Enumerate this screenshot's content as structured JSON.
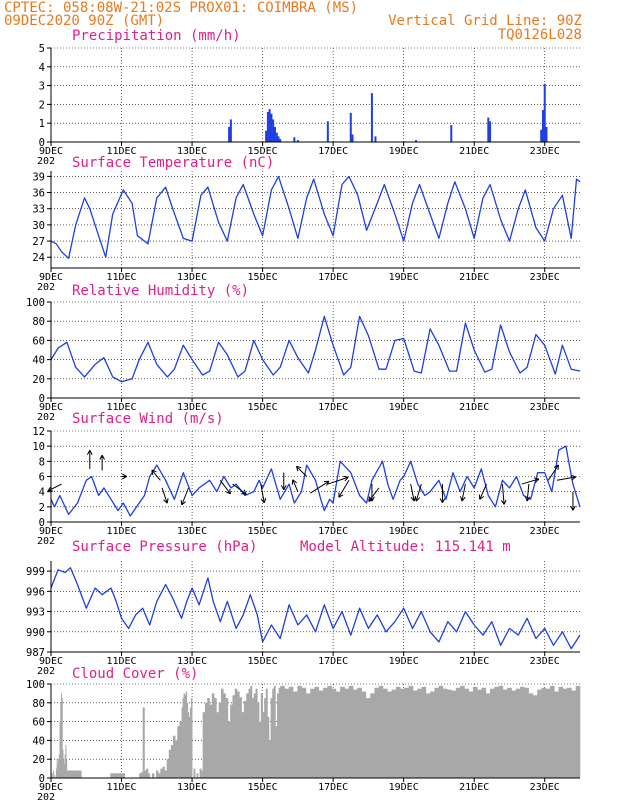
{
  "header": {
    "line1_left": "CPTEC:   058:08W-21:02S   PROX01: COIMBRA (MS)",
    "line2_left": "09DEC2020 90Z (GMT)",
    "line1_right": "Vertical Grid Line: 90Z",
    "line2_right": "TQ0126L028"
  },
  "x_axis": {
    "day_start": 9,
    "day_end": 24,
    "tick_labels": [
      "9DEC",
      "11DEC",
      "13DEC",
      "15DEC",
      "17DEC",
      "19DEC",
      "21DEC",
      "23DEC"
    ],
    "tick_days": [
      9,
      11,
      13,
      15,
      17,
      19,
      21,
      23
    ],
    "partial_year_label": "202"
  },
  "colors": {
    "series": "#1f3fe0",
    "title": "#e0208a",
    "header": "#e87a1e",
    "cloud": "#a8a8a8",
    "arrow": "#000000",
    "grid": "#000000"
  },
  "chart_data": [
    {
      "id": "precip",
      "type": "bar",
      "title": "Precipitation (mm/h)",
      "ylim": [
        0,
        5
      ],
      "yticks": [
        0,
        1,
        2,
        3,
        4,
        5
      ],
      "x": [
        14.05,
        14.1,
        15.1,
        15.15,
        15.2,
        15.25,
        15.3,
        15.35,
        15.4,
        15.45,
        15.5,
        15.9,
        16.0,
        16.85,
        17.5,
        17.55,
        18.1,
        18.2,
        19.35,
        20.35,
        21.4,
        21.45,
        22.9,
        22.95,
        23.0,
        23.05
      ],
      "values": [
        0.8,
        1.2,
        0.6,
        1.6,
        1.75,
        1.5,
        1.2,
        0.8,
        0.5,
        0.3,
        0.15,
        0.25,
        0.1,
        1.1,
        1.55,
        0.4,
        2.6,
        0.3,
        0.1,
        0.9,
        1.3,
        1.1,
        0.65,
        1.7,
        3.1,
        0.8
      ],
      "xlabel": "",
      "ylabel": ""
    },
    {
      "id": "temp",
      "type": "line",
      "title": "Surface Temperature (nC)",
      "ylim": [
        22,
        40
      ],
      "yticks": [
        24,
        27,
        30,
        33,
        36,
        39
      ],
      "x": [
        9.0,
        9.15,
        9.3,
        9.5,
        9.7,
        9.95,
        10.1,
        10.35,
        10.55,
        10.75,
        11.05,
        11.3,
        11.45,
        11.75,
        12.0,
        12.25,
        12.45,
        12.75,
        13.0,
        13.25,
        13.45,
        13.75,
        14.0,
        14.25,
        14.45,
        14.75,
        15.0,
        15.25,
        15.45,
        15.75,
        16.0,
        16.25,
        16.45,
        16.75,
        17.0,
        17.25,
        17.45,
        17.7,
        17.95,
        18.25,
        18.45,
        18.75,
        19.0,
        19.25,
        19.45,
        19.75,
        20.0,
        20.25,
        20.45,
        20.75,
        21.0,
        21.25,
        21.45,
        21.75,
        22.0,
        22.25,
        22.45,
        22.75,
        23.0,
        23.25,
        23.5,
        23.75,
        23.9,
        24.0
      ],
      "values": [
        27,
        26.5,
        25,
        23.8,
        30,
        35,
        33,
        28,
        24,
        32,
        36.5,
        34,
        28,
        26.5,
        35,
        37,
        33,
        27.5,
        27,
        35.5,
        37,
        30.5,
        27,
        35,
        37.5,
        32,
        28,
        36.5,
        39,
        33,
        27.5,
        35,
        38.5,
        32,
        28,
        37.5,
        39,
        35.5,
        29,
        34,
        37.5,
        32,
        27,
        34,
        37.5,
        32,
        27.5,
        34,
        38,
        33,
        27.5,
        35,
        37.5,
        31,
        27,
        33,
        36.5,
        29.5,
        27,
        33,
        35.5,
        27.5,
        38.5,
        38
      ],
      "xlabel": "",
      "ylabel": ""
    },
    {
      "id": "rh",
      "type": "line",
      "title": "Relative Humidity (%)",
      "ylim": [
        0,
        100
      ],
      "yticks": [
        0,
        20,
        40,
        60,
        80,
        100
      ],
      "x": [
        9.0,
        9.2,
        9.45,
        9.7,
        9.95,
        10.25,
        10.5,
        10.75,
        11.0,
        11.3,
        11.5,
        11.75,
        12.0,
        12.3,
        12.5,
        12.75,
        13.0,
        13.3,
        13.5,
        13.75,
        14.0,
        14.3,
        14.5,
        14.75,
        15.0,
        15.3,
        15.5,
        15.75,
        16.0,
        16.3,
        16.5,
        16.75,
        17.0,
        17.3,
        17.5,
        17.75,
        18.0,
        18.3,
        18.5,
        18.75,
        19.0,
        19.3,
        19.5,
        19.75,
        20.0,
        20.3,
        20.5,
        20.75,
        21.0,
        21.3,
        21.5,
        21.75,
        22.0,
        22.3,
        22.5,
        22.75,
        23.0,
        23.3,
        23.5,
        23.75,
        24.0
      ],
      "values": [
        40,
        52,
        58,
        32,
        22,
        35,
        42,
        22,
        17,
        20,
        40,
        58,
        35,
        22,
        30,
        55,
        40,
        24,
        28,
        58,
        45,
        22,
        28,
        60,
        40,
        24,
        32,
        60,
        42,
        26,
        50,
        85,
        55,
        24,
        32,
        85,
        65,
        30,
        30,
        60,
        62,
        28,
        26,
        72,
        55,
        28,
        28,
        78,
        50,
        27,
        30,
        76,
        48,
        26,
        32,
        66,
        55,
        25,
        55,
        30,
        28
      ],
      "xlabel": "",
      "ylabel": ""
    },
    {
      "id": "wind",
      "type": "line",
      "title": "Surface Wind (m/s)",
      "ylim": [
        0,
        12
      ],
      "yticks": [
        0,
        2,
        4,
        6,
        8,
        10,
        12
      ],
      "x": [
        9.0,
        9.1,
        9.25,
        9.35,
        9.5,
        9.75,
        10.0,
        10.15,
        10.35,
        10.5,
        10.7,
        10.9,
        11.05,
        11.25,
        11.5,
        11.65,
        11.8,
        12.0,
        12.25,
        12.5,
        12.75,
        13.0,
        13.2,
        13.5,
        13.7,
        13.9,
        14.1,
        14.25,
        14.5,
        14.75,
        14.9,
        15.0,
        15.25,
        15.5,
        15.75,
        15.9,
        16.1,
        16.25,
        16.5,
        16.65,
        16.75,
        16.9,
        17.0,
        17.2,
        17.5,
        17.75,
        17.95,
        18.1,
        18.4,
        18.55,
        18.7,
        18.9,
        19.0,
        19.2,
        19.4,
        19.6,
        19.75,
        20.0,
        20.2,
        20.4,
        20.6,
        20.8,
        21.0,
        21.2,
        21.4,
        21.6,
        21.8,
        22.0,
        22.2,
        22.4,
        22.6,
        22.8,
        23.0,
        23.2,
        23.4,
        23.6,
        23.8,
        24.0
      ],
      "values": [
        3.0,
        2.0,
        3.5,
        2.5,
        1.0,
        2.5,
        5.5,
        6.0,
        3.5,
        4.5,
        3.0,
        1.5,
        2.5,
        0.8,
        2.5,
        3.5,
        6.0,
        7.5,
        5.5,
        3.0,
        6.5,
        3.5,
        4.5,
        5.5,
        4.0,
        6.0,
        4.5,
        5.0,
        3.5,
        4.0,
        5.5,
        4.5,
        7.0,
        3.0,
        5.0,
        2.5,
        4.0,
        7.5,
        5.5,
        3.0,
        1.5,
        3.0,
        2.5,
        8.0,
        6.5,
        3.5,
        2.5,
        5.5,
        8.0,
        5.0,
        3.0,
        5.5,
        6.0,
        8.0,
        5.0,
        3.5,
        4.0,
        5.5,
        3.0,
        6.5,
        4.0,
        6.0,
        4.5,
        7.0,
        3.5,
        2.0,
        5.5,
        4.5,
        6.0,
        3.5,
        3.0,
        6.5,
        6.5,
        4.0,
        9.5,
        10.0,
        5.0,
        2.0
      ],
      "arrows": [
        {
          "x": 9.3,
          "y": 5.0,
          "u": -0.4,
          "v": -0.2
        },
        {
          "x": 10.1,
          "y": 7.0,
          "u": 0.0,
          "v": 0.55
        },
        {
          "x": 10.45,
          "y": 6.8,
          "u": 0.0,
          "v": 0.45
        },
        {
          "x": 11.0,
          "y": 6.0,
          "u": 0.15,
          "v": 0.0
        },
        {
          "x": 12.1,
          "y": 5.5,
          "u": -0.25,
          "v": 0.3
        },
        {
          "x": 12.15,
          "y": 4.5,
          "u": 0.15,
          "v": -0.45
        },
        {
          "x": 12.9,
          "y": 4.5,
          "u": -0.2,
          "v": -0.5
        },
        {
          "x": 13.8,
          "y": 5.5,
          "u": 0.3,
          "v": -0.4
        },
        {
          "x": 14.15,
          "y": 5.0,
          "u": 0.4,
          "v": -0.3
        },
        {
          "x": 14.95,
          "y": 5.0,
          "u": 0.1,
          "v": -0.55
        },
        {
          "x": 15.6,
          "y": 6.5,
          "u": 0.0,
          "v": -0.5
        },
        {
          "x": 16.0,
          "y": 4.0,
          "u": -0.15,
          "v": 0.35
        },
        {
          "x": 16.25,
          "y": 6.0,
          "u": -0.3,
          "v": 0.3
        },
        {
          "x": 16.35,
          "y": 3.8,
          "u": 0.55,
          "v": 0.35
        },
        {
          "x": 16.85,
          "y": 5.0,
          "u": 0.6,
          "v": 0.2
        },
        {
          "x": 17.45,
          "y": 5.5,
          "u": -0.3,
          "v": -0.5
        },
        {
          "x": 18.1,
          "y": 5.0,
          "u": 0.0,
          "v": -0.5
        },
        {
          "x": 18.3,
          "y": 4.5,
          "u": -0.3,
          "v": -0.4
        },
        {
          "x": 19.2,
          "y": 5.0,
          "u": 0.1,
          "v": -0.5
        },
        {
          "x": 19.5,
          "y": 5.0,
          "u": -0.15,
          "v": -0.5
        },
        {
          "x": 20.1,
          "y": 5.0,
          "u": 0.0,
          "v": -0.55
        },
        {
          "x": 20.75,
          "y": 5.0,
          "u": -0.1,
          "v": -0.5
        },
        {
          "x": 21.35,
          "y": 5.0,
          "u": -0.2,
          "v": -0.45
        },
        {
          "x": 21.8,
          "y": 5.0,
          "u": 0.05,
          "v": -0.6
        },
        {
          "x": 22.35,
          "y": 5.0,
          "u": 0.5,
          "v": 0.15
        },
        {
          "x": 22.55,
          "y": 5.0,
          "u": -0.05,
          "v": -0.5
        },
        {
          "x": 23.1,
          "y": 5.5,
          "u": 0.3,
          "v": 0.45
        },
        {
          "x": 23.35,
          "y": 5.5,
          "u": 0.55,
          "v": 0.1
        },
        {
          "x": 23.8,
          "y": 4.0,
          "u": 0.0,
          "v": -0.55
        }
      ],
      "xlabel": "",
      "ylabel": ""
    },
    {
      "id": "pres",
      "type": "line",
      "title": "Surface Pressure (hPa)",
      "annotation": "Model Altitude: 115.141 m",
      "ylim": [
        987,
        1000.5
      ],
      "yticks": [
        987,
        990,
        993,
        996,
        999
      ],
      "x": [
        9.0,
        9.2,
        9.4,
        9.55,
        9.75,
        10.0,
        10.25,
        10.45,
        10.7,
        10.85,
        11.0,
        11.2,
        11.4,
        11.6,
        11.8,
        12.0,
        12.25,
        12.45,
        12.7,
        12.85,
        13.0,
        13.2,
        13.45,
        13.6,
        13.8,
        14.0,
        14.25,
        14.45,
        14.65,
        14.85,
        15.0,
        15.25,
        15.5,
        15.75,
        16.0,
        16.25,
        16.5,
        16.75,
        17.0,
        17.25,
        17.5,
        17.75,
        18.0,
        18.25,
        18.5,
        18.75,
        19.0,
        19.25,
        19.5,
        19.75,
        20.0,
        20.25,
        20.5,
        20.75,
        21.0,
        21.25,
        21.5,
        21.75,
        22.0,
        22.25,
        22.5,
        22.75,
        23.0,
        23.25,
        23.5,
        23.75,
        24.0
      ],
      "values": [
        996.5,
        999.2,
        998.8,
        999.5,
        997.0,
        993.5,
        996.5,
        995.5,
        996.5,
        994.5,
        992.0,
        990.5,
        992.5,
        993.5,
        991.0,
        994.5,
        997.0,
        995.0,
        992.0,
        994.5,
        996.5,
        994.0,
        998.0,
        994.5,
        991.5,
        994.5,
        990.5,
        992.5,
        995.5,
        992.5,
        988.5,
        991.0,
        989.0,
        994.0,
        991.0,
        992.5,
        990.0,
        994.0,
        990.5,
        993.0,
        989.5,
        993.5,
        990.5,
        992.5,
        990.0,
        991.5,
        993.5,
        990.5,
        993.0,
        990.0,
        988.5,
        991.5,
        990.0,
        993.0,
        991.0,
        989.5,
        991.5,
        988.0,
        990.5,
        989.5,
        992.0,
        989.0,
        990.5,
        988.0,
        990.0,
        987.5,
        989.5
      ],
      "xlabel": "",
      "ylabel": ""
    },
    {
      "id": "cloud",
      "type": "bar",
      "title": "Cloud Cover (%)",
      "ylim": [
        0,
        100
      ],
      "yticks": [
        0,
        20,
        40,
        60,
        80,
        100
      ],
      "segments": [
        {
          "x0": 9.0,
          "x1": 9.2,
          "values": [
            0,
            5,
            0,
            8,
            0,
            3,
            0,
            10,
            20,
            15
          ]
        },
        {
          "x0": 9.2,
          "x1": 9.45,
          "values": [
            20,
            25,
            60,
            80,
            90,
            85,
            30,
            20,
            15,
            25,
            35,
            20
          ]
        },
        {
          "x0": 9.45,
          "x1": 11.5,
          "values": [
            8,
            0,
            0,
            5,
            0
          ]
        },
        {
          "x0": 11.5,
          "x1": 11.8,
          "values": [
            5,
            6,
            75,
            8,
            10,
            5
          ]
        },
        {
          "x0": 11.8,
          "x1": 12.7,
          "values": [
            0,
            5,
            0,
            8,
            5,
            10,
            12,
            8,
            20,
            30,
            35,
            45,
            40,
            55,
            60
          ]
        },
        {
          "x0": 12.7,
          "x1": 13.0,
          "values": [
            75,
            85,
            90,
            88,
            92,
            80,
            70,
            65,
            75,
            85
          ]
        },
        {
          "x0": 13.0,
          "x1": 13.3,
          "values": [
            0,
            10,
            0,
            5,
            0,
            10,
            8
          ]
        },
        {
          "x0": 13.3,
          "x1": 14.6,
          "values": [
            70,
            80,
            85,
            78,
            90,
            85,
            70,
            80,
            95,
            90,
            85,
            60,
            78,
            88,
            95,
            92,
            86,
            70,
            82,
            90
          ]
        },
        {
          "x0": 14.6,
          "x1": 15.0,
          "values": [
            95,
            98,
            85,
            90,
            95,
            80,
            60,
            90
          ]
        },
        {
          "x0": 15.0,
          "x1": 15.5,
          "values": [
            70,
            85,
            95,
            65,
            40,
            85,
            95,
            98,
            55,
            90,
            96
          ]
        },
        {
          "x0": 15.5,
          "x1": 24.0,
          "values": [
            98,
            95,
            97,
            92,
            98,
            96,
            90,
            95,
            97,
            93,
            96,
            98,
            95,
            92,
            97,
            95,
            98,
            94,
            96,
            92,
            85,
            90,
            96,
            98,
            95,
            92,
            94,
            97,
            95,
            96,
            98,
            93,
            95,
            97,
            90,
            92,
            96,
            98,
            95,
            94,
            93,
            96,
            98,
            95,
            92,
            97,
            94,
            96,
            90,
            95,
            97,
            98,
            94,
            96,
            93,
            95,
            97,
            96,
            90,
            88,
            94,
            96,
            95,
            98,
            92,
            97,
            95,
            96,
            93,
            98
          ]
        }
      ],
      "xlabel": "",
      "ylabel": ""
    }
  ]
}
